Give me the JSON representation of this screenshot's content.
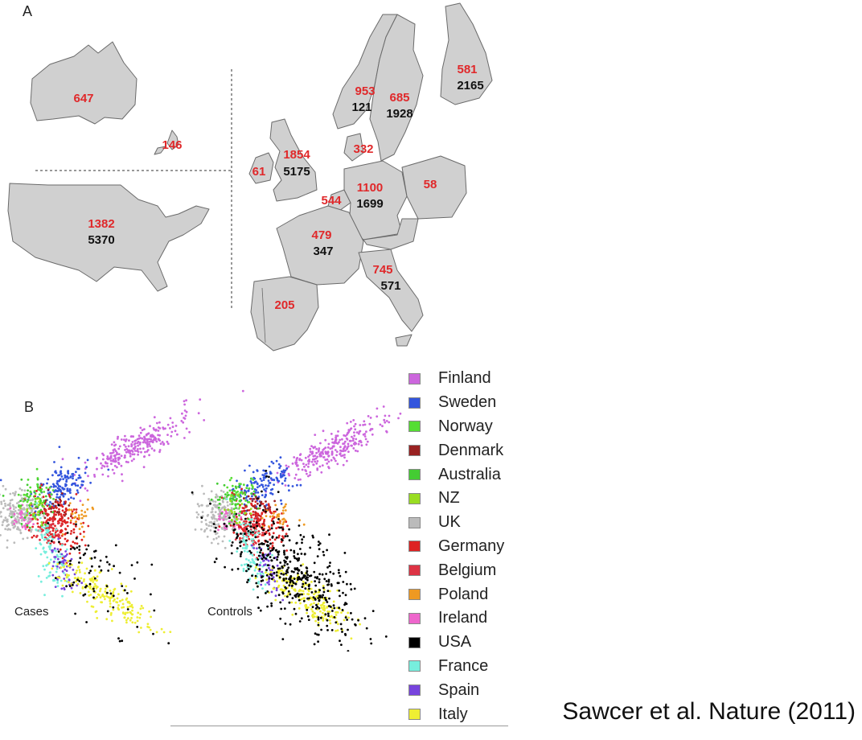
{
  "panel_labels": {
    "a": "A",
    "b": "B"
  },
  "map": {
    "regions": [
      {
        "id": "australia",
        "name": "Australia",
        "cases": "647",
        "controls": ""
      },
      {
        "id": "new-zealand",
        "name": "NZ",
        "cases": "146",
        "controls": ""
      },
      {
        "id": "usa",
        "name": "USA",
        "cases": "1382",
        "controls": "5370"
      },
      {
        "id": "ireland",
        "name": "Ireland",
        "cases": "61",
        "controls": ""
      },
      {
        "id": "uk",
        "name": "UK",
        "cases": "1854",
        "controls": "5175"
      },
      {
        "id": "norway",
        "name": "Norway",
        "cases": "953",
        "controls": "121"
      },
      {
        "id": "sweden",
        "name": "Sweden",
        "cases": "685",
        "controls": "1928"
      },
      {
        "id": "finland",
        "name": "Finland",
        "cases": "581",
        "controls": "2165"
      },
      {
        "id": "denmark",
        "name": "Denmark",
        "cases": "332",
        "controls": ""
      },
      {
        "id": "belgium",
        "name": "Belgium",
        "cases": "544",
        "controls": ""
      },
      {
        "id": "germany",
        "name": "Germany",
        "cases": "1100",
        "controls": "1699"
      },
      {
        "id": "poland",
        "name": "Poland",
        "cases": "58",
        "controls": ""
      },
      {
        "id": "france",
        "name": "France",
        "cases": "479",
        "controls": "347"
      },
      {
        "id": "italy",
        "name": "Italy",
        "cases": "745",
        "controls": "571"
      },
      {
        "id": "spain",
        "name": "Spain",
        "cases": "205",
        "controls": ""
      }
    ],
    "colors": {
      "land": "#d0d0d0",
      "border": "#6a6a6a",
      "cases_text": "#e0282a",
      "controls_text": "#111111"
    }
  },
  "scatter": {
    "cases_label": "Cases",
    "controls_label": "Controls"
  },
  "legend": [
    {
      "label": "Finland",
      "color": "#cc66dd"
    },
    {
      "label": "Sweden",
      "color": "#3355dd"
    },
    {
      "label": "Norway",
      "color": "#55dd33"
    },
    {
      "label": "Denmark",
      "color": "#992222"
    },
    {
      "label": "Australia",
      "color": "#44cc33"
    },
    {
      "label": "NZ",
      "color": "#99dd22"
    },
    {
      "label": "UK",
      "color": "#bbbbbb"
    },
    {
      "label": "Germany",
      "color": "#dd2222"
    },
    {
      "label": "Belgium",
      "color": "#dd3344"
    },
    {
      "label": "Poland",
      "color": "#ee9922"
    },
    {
      "label": "Ireland",
      "color": "#ee66cc"
    },
    {
      "label": "USA",
      "color": "#000000"
    },
    {
      "label": "France",
      "color": "#77eedd"
    },
    {
      "label": "Spain",
      "color": "#7744dd"
    },
    {
      "label": "Italy",
      "color": "#eeee33"
    }
  ],
  "citation": "Sawcer et al. Nature (2011)"
}
